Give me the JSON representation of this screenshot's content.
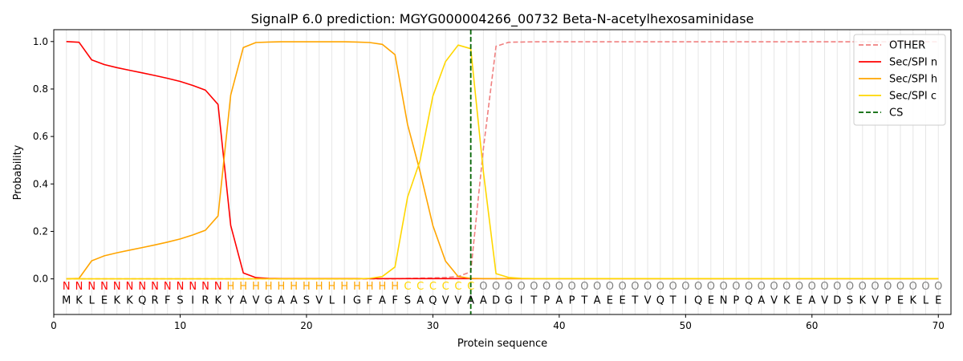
{
  "chart_data": {
    "type": "line",
    "title": "SignalP 6.0 prediction: MGYG000004266_00732 Beta-N-acetylhexosaminidase",
    "xlabel": "Protein sequence",
    "ylabel": "Probability",
    "xlim": [
      0,
      71
    ],
    "ylim": [
      -0.15,
      1.05
    ],
    "xticks": [
      0,
      10,
      20,
      30,
      40,
      50,
      60,
      70
    ],
    "yticks": [
      0.0,
      0.2,
      0.4,
      0.6,
      0.8,
      1.0
    ],
    "x": [
      1,
      2,
      3,
      4,
      5,
      6,
      7,
      8,
      9,
      10,
      11,
      12,
      13,
      14,
      15,
      16,
      17,
      18,
      19,
      20,
      21,
      22,
      23,
      24,
      25,
      26,
      27,
      28,
      29,
      30,
      31,
      32,
      33,
      34,
      35,
      36,
      37,
      38,
      39,
      40,
      41,
      42,
      43,
      44,
      45,
      46,
      47,
      48,
      49,
      50,
      51,
      52,
      53,
      54,
      55,
      56,
      57,
      58,
      59,
      60,
      61,
      62,
      63,
      64,
      65,
      66,
      67,
      68,
      69,
      70
    ],
    "sequence": [
      "M",
      "K",
      "L",
      "E",
      "K",
      "K",
      "Q",
      "R",
      "F",
      "S",
      "I",
      "R",
      "K",
      "Y",
      "A",
      "V",
      "G",
      "A",
      "A",
      "S",
      "V",
      "L",
      "I",
      "G",
      "F",
      "A",
      "F",
      "S",
      "A",
      "Q",
      "V",
      "V",
      "A",
      "A",
      "D",
      "G",
      "I",
      "T",
      "P",
      "A",
      "P",
      "T",
      "A",
      "E",
      "E",
      "T",
      "V",
      "Q",
      "T",
      "I",
      "Q",
      "E",
      "N",
      "P",
      "Q",
      "A",
      "V",
      "K",
      "E",
      "A",
      "V",
      "D",
      "S",
      "K",
      "V",
      "P",
      "E",
      "K",
      "L",
      "E"
    ],
    "labels": [
      "N",
      "N",
      "N",
      "N",
      "N",
      "N",
      "N",
      "N",
      "N",
      "N",
      "N",
      "N",
      "N",
      "H",
      "H",
      "H",
      "H",
      "H",
      "H",
      "H",
      "H",
      "H",
      "H",
      "H",
      "H",
      "H",
      "H",
      "C",
      "C",
      "C",
      "C",
      "C",
      "C",
      "O",
      "O",
      "O",
      "O",
      "O",
      "O",
      "O",
      "O",
      "O",
      "O",
      "O",
      "O",
      "O",
      "O",
      "O",
      "O",
      "O",
      "O",
      "O",
      "O",
      "O",
      "O",
      "O",
      "O",
      "O",
      "O",
      "O",
      "O",
      "O",
      "O",
      "O",
      "O",
      "O",
      "O",
      "O",
      "O",
      "O"
    ],
    "label_colors": {
      "N": "#ff0000",
      "H": "#ffa500",
      "C": "#ffd700",
      "O": "#808080"
    },
    "cs_position": 33,
    "series": [
      {
        "name": "OTHER",
        "color": "#f08080",
        "dash": "dashed",
        "values": [
          0,
          0,
          0,
          0,
          0,
          0,
          0,
          0,
          0,
          0,
          0,
          0,
          0,
          0,
          0,
          0,
          0,
          0,
          0,
          0,
          0,
          0,
          0,
          0,
          0,
          0,
          0,
          0.002,
          0.003,
          0.004,
          0.006,
          0.01,
          0.03,
          0.55,
          0.98,
          0.997,
          0.998,
          0.999,
          0.999,
          0.999,
          0.999,
          0.999,
          0.999,
          0.999,
          0.999,
          0.999,
          0.999,
          0.999,
          0.999,
          0.999,
          0.999,
          0.999,
          0.999,
          0.999,
          0.999,
          0.999,
          0.999,
          0.999,
          0.999,
          0.999,
          0.999,
          0.999,
          0.999,
          0.999,
          0.999,
          0.999,
          0.999,
          0.999,
          0.999,
          0.999
        ]
      },
      {
        "name": "Sec/SPI n",
        "color": "#ff0000",
        "dash": "solid",
        "values": [
          1.0,
          0.997,
          0.923,
          0.903,
          0.89,
          0.879,
          0.868,
          0.857,
          0.845,
          0.832,
          0.815,
          0.795,
          0.735,
          0.225,
          0.025,
          0.005,
          0.002,
          0.001,
          0.001,
          0.001,
          0.001,
          0.001,
          0.001,
          0.001,
          0.001,
          0.001,
          0.001,
          0.001,
          0.001,
          0.001,
          0.001,
          0.001,
          0.001,
          0.001,
          0.001,
          0.001,
          0.001,
          0.001,
          0.001,
          0.001,
          0.001,
          0.001,
          0.001,
          0.001,
          0.001,
          0.001,
          0.001,
          0.001,
          0.001,
          0.001,
          0.001,
          0.001,
          0.001,
          0.001,
          0.001,
          0.001,
          0.001,
          0.001,
          0.001,
          0.001,
          0.001,
          0.001,
          0.001,
          0.001,
          0.001,
          0.001,
          0.001,
          0.001,
          0.001,
          0.001
        ]
      },
      {
        "name": "Sec/SPI h",
        "color": "#ffa500",
        "dash": "solid",
        "values": [
          0,
          0.002,
          0.076,
          0.097,
          0.11,
          0.121,
          0.132,
          0.143,
          0.155,
          0.168,
          0.185,
          0.205,
          0.265,
          0.775,
          0.975,
          0.996,
          0.998,
          0.999,
          0.999,
          0.999,
          0.999,
          0.999,
          0.999,
          0.998,
          0.996,
          0.988,
          0.945,
          0.65,
          0.45,
          0.225,
          0.075,
          0.01,
          0.002,
          0.001,
          0.001,
          0.001,
          0.001,
          0.001,
          0.001,
          0.001,
          0.001,
          0.001,
          0.001,
          0.001,
          0.001,
          0.001,
          0.001,
          0.001,
          0.001,
          0.001,
          0.001,
          0.001,
          0.001,
          0.001,
          0.001,
          0.001,
          0.001,
          0.001,
          0.001,
          0.001,
          0.001,
          0.001,
          0.001,
          0.001,
          0.001,
          0.001,
          0.001,
          0.001,
          0.001,
          0.001
        ]
      },
      {
        "name": "Sec/SPI c",
        "color": "#ffd700",
        "dash": "solid",
        "values": [
          0,
          0,
          0,
          0,
          0,
          0,
          0,
          0,
          0,
          0,
          0,
          0,
          0,
          0,
          0,
          0,
          0,
          0,
          0,
          0,
          0,
          0,
          0,
          0,
          0.002,
          0.01,
          0.05,
          0.345,
          0.5,
          0.77,
          0.915,
          0.985,
          0.97,
          0.45,
          0.022,
          0.006,
          0.002,
          0.001,
          0.001,
          0.001,
          0.001,
          0.001,
          0.001,
          0.001,
          0.001,
          0.001,
          0.001,
          0.001,
          0.001,
          0.001,
          0.001,
          0.001,
          0.001,
          0.001,
          0.001,
          0.001,
          0.001,
          0.001,
          0.001,
          0.001,
          0.001,
          0.001,
          0.001,
          0.001,
          0.001,
          0.001,
          0.001,
          0.001,
          0.001,
          0.001
        ]
      }
    ],
    "legend": {
      "placement": "top-right",
      "entries": [
        {
          "label": "OTHER",
          "color": "#f08080",
          "dash": "dashed"
        },
        {
          "label": "Sec/SPI n",
          "color": "#ff0000",
          "dash": "solid"
        },
        {
          "label": "Sec/SPI h",
          "color": "#ffa500",
          "dash": "solid"
        },
        {
          "label": "Sec/SPI c",
          "color": "#ffd700",
          "dash": "solid"
        },
        {
          "label": "CS",
          "color": "#006400",
          "dash": "dashed"
        }
      ]
    },
    "grid": "vertical lines at each residue"
  }
}
